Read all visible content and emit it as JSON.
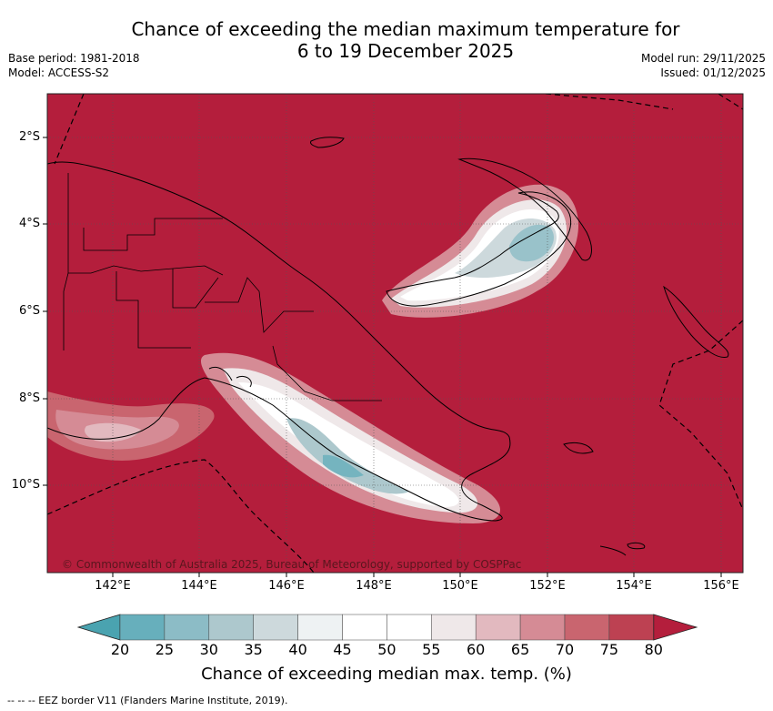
{
  "title": "Chance of exceeding the median maximum temperature for\n6 to 19 December 2025",
  "meta_left": {
    "base_period": "Base period: 1981-2018",
    "model": "Model: ACCESS-S2"
  },
  "meta_right": {
    "model_run": "Model run: 29/11/2025",
    "issued": "Issued: 01/12/2025"
  },
  "map": {
    "lat_labels": [
      "2°S",
      "4°S",
      "6°S",
      "8°S",
      "10°S"
    ],
    "lon_labels": [
      "142°E",
      "144°E",
      "146°E",
      "148°E",
      "150°E",
      "152°E",
      "154°E",
      "156°E"
    ],
    "copyright": "© Commonwealth of Australia 2025, Bureau of Meteorology, supported by COSPPac",
    "background_color": "#b41e3c",
    "gridline_color": "#555555"
  },
  "colorbar": {
    "title": "Chance of exceeding median max. temp. (%)",
    "ticks": [
      "20",
      "25",
      "30",
      "35",
      "40",
      "45",
      "50",
      "55",
      "60",
      "65",
      "70",
      "75",
      "80"
    ],
    "colors": [
      "#4aa3b0",
      "#67afbc",
      "#8cbcc6",
      "#adc8cd",
      "#cdd9dc",
      "#eef2f3",
      "#ffffff",
      "#ffffff",
      "#efe8e9",
      "#e2b9bf",
      "#d58b95",
      "#c9656f",
      "#bd4152",
      "#b41e3c"
    ]
  },
  "footnote": "--  --  -- EEZ border V11 (Flanders Marine Institute, 2019)."
}
